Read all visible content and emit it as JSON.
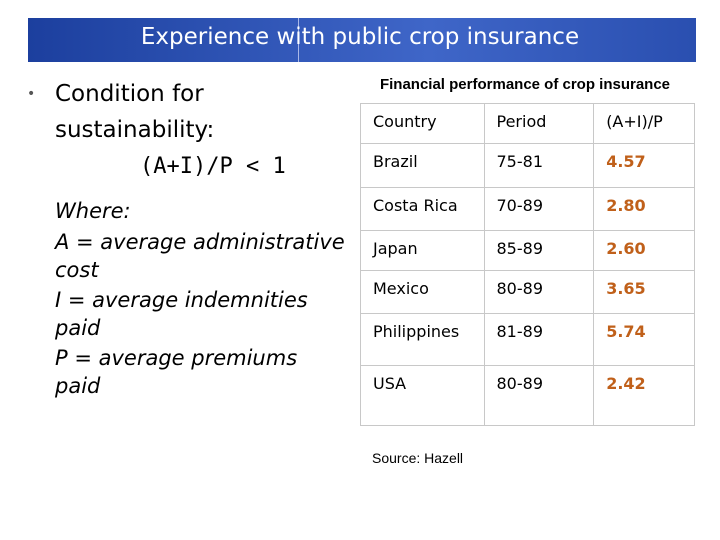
{
  "header": {
    "title": "Experience with public crop insurance"
  },
  "left": {
    "bullet": "Condition for sustainability:",
    "formula": "(A+I)/P < 1",
    "where": "Where:",
    "definitions": [
      "A = average administrative cost",
      "I  = average indemnities paid",
      "P = average premiums paid"
    ]
  },
  "table": {
    "title": "Financial performance of crop insurance",
    "columns": [
      "Country",
      "Period",
      "(A+I)/P"
    ],
    "rows": [
      [
        "Brazil",
        "75-81",
        "4.57"
      ],
      [
        "Costa Rica",
        "70-89",
        "2.80"
      ],
      [
        "Japan",
        "85-89",
        "2.60"
      ],
      [
        "Mexico",
        "80-89",
        "3.65"
      ],
      [
        "Philippines",
        "81-89",
        "5.74"
      ],
      [
        "USA",
        "80-89",
        "2.42"
      ]
    ],
    "source": "Source: Hazell"
  }
}
